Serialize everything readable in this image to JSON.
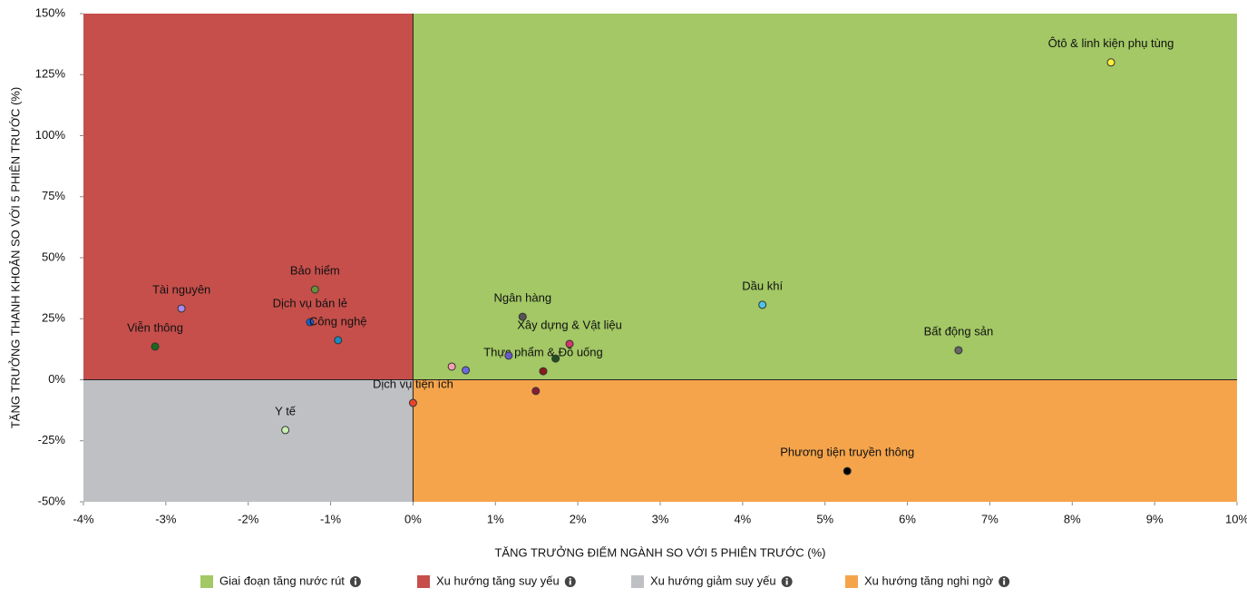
{
  "chart_data": {
    "type": "scatter",
    "x_label": "TĂNG TRƯỞNG ĐIỂM NGÀNH SO VỚI 5 PHIÊN TRƯỚC (%)",
    "y_label": "TĂNG TRƯỞNG THANH KHOẢN SO VỚI 5 PHIÊN TRƯỚC (%)",
    "xlim": [
      -4,
      10
    ],
    "ylim": [
      -50,
      150
    ],
    "xticks": [
      {
        "value": -4,
        "label": "-4%"
      },
      {
        "value": -3,
        "label": "-3%"
      },
      {
        "value": -2,
        "label": "-2%"
      },
      {
        "value": -1,
        "label": "-1%"
      },
      {
        "value": 0,
        "label": "0%"
      },
      {
        "value": 1,
        "label": "1%"
      },
      {
        "value": 2,
        "label": "2%"
      },
      {
        "value": 3,
        "label": "3%"
      },
      {
        "value": 4,
        "label": "4%"
      },
      {
        "value": 5,
        "label": "5%"
      },
      {
        "value": 6,
        "label": "6%"
      },
      {
        "value": 7,
        "label": "7%"
      },
      {
        "value": 8,
        "label": "8%"
      },
      {
        "value": 9,
        "label": "9%"
      },
      {
        "value": 10,
        "label": "10%"
      }
    ],
    "yticks": [
      {
        "value": -50,
        "label": "-50%"
      },
      {
        "value": -25,
        "label": "-25%"
      },
      {
        "value": 0,
        "label": "0%"
      },
      {
        "value": 25,
        "label": "25%"
      },
      {
        "value": 50,
        "label": "50%"
      },
      {
        "value": 75,
        "label": "75%"
      },
      {
        "value": 100,
        "label": "100%"
      },
      {
        "value": 125,
        "label": "125%"
      },
      {
        "value": 150,
        "label": "150%"
      }
    ],
    "quadrants": [
      {
        "name": "Giai đoạn tăng nước rút",
        "color": "#a3c865"
      },
      {
        "name": "Xu hướng tăng suy yếu",
        "color": "#c64f4b"
      },
      {
        "name": "Xu hướng giảm suy yếu",
        "color": "#bfc0c4"
      },
      {
        "name": "Xu hướng tăng nghi ngờ",
        "color": "#f5a44b"
      }
    ],
    "labels": [
      "Ôtô & linh kiện phụ tùng",
      "Dầu khí",
      "Bất động sản",
      "Phương tiện truyền thông",
      "Ngân hàng",
      "Xây dựng & Vật liệu",
      "Thực phẩm & Đồ uống",
      null,
      null,
      null,
      null,
      null,
      "Dịch vụ tiện ích",
      "Y tế",
      "Tài nguyên",
      "Viễn thông",
      "Bảo hiểm",
      "Dịch vụ bán lẻ",
      "Công nghệ"
    ],
    "x": [
      8.47,
      4.24,
      6.62,
      5.27,
      1.33,
      1.9,
      1.58,
      1.16,
      1.73,
      1.49,
      0.47,
      0.64,
      0.0,
      -1.55,
      -2.81,
      -3.13,
      -1.19,
      -1.25,
      -0.91
    ],
    "values": [
      130,
      30.7,
      12.1,
      -37.4,
      25.8,
      14.7,
      3.5,
      9.9,
      8.7,
      -4.6,
      5.4,
      3.9,
      -9.5,
      -20.6,
      29.2,
      13.6,
      37,
      23.6,
      16.2
    ],
    "colors": [
      "#ffef3a",
      "#4fc3e8",
      "#666666",
      "#000000",
      "#555555",
      "#d6336c",
      "#8b1a1a",
      "#6a5acd",
      "#1f4f1f",
      "#8b1a3a",
      "#f5a0b0",
      "#6a6ae0",
      "#e8452c",
      "#c8f0b0",
      "#a98af0",
      "#1a6b1a",
      "#6b8e3a",
      "#1a5fd6",
      "#1a8ac0"
    ]
  }
}
